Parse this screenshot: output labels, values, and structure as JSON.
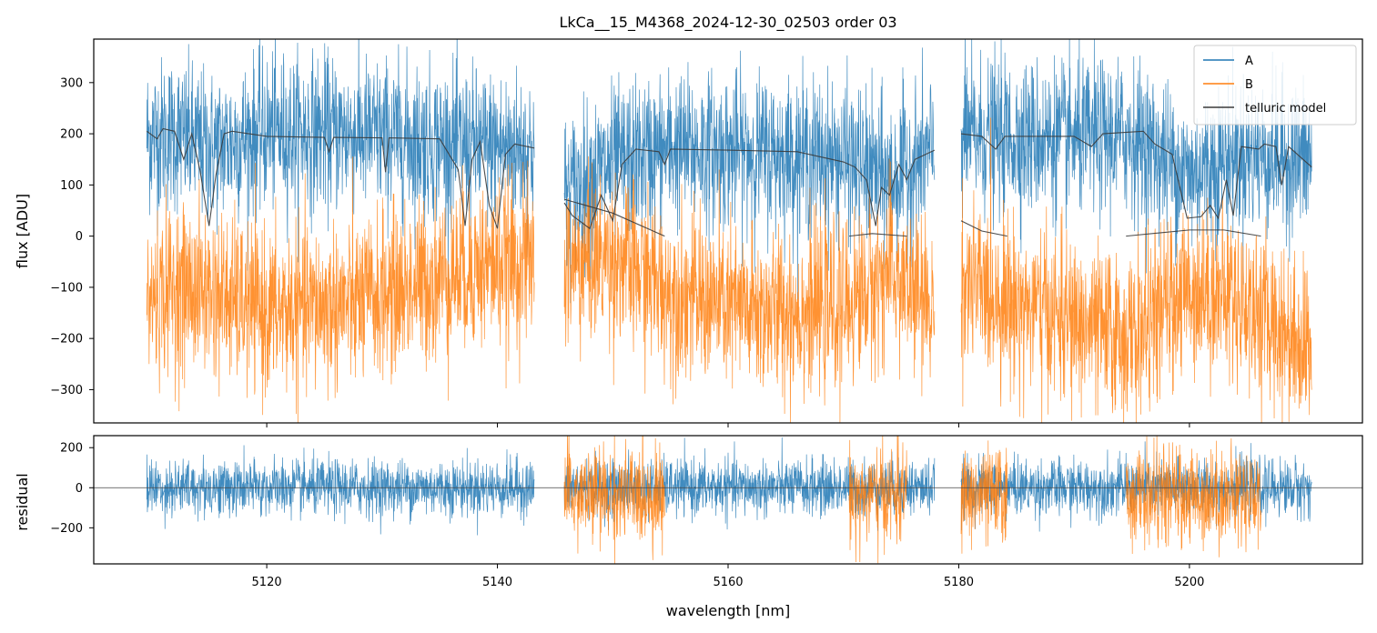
{
  "chart_data": [
    {
      "type": "line",
      "panel": "main",
      "title": "LkCa__15_M4368_2024-12-30_02503  order 03",
      "xlabel": "",
      "ylabel": "flux [ADU]",
      "xlim": [
        5105,
        5215
      ],
      "ylim": [
        -365,
        385
      ],
      "xticks": [
        5120,
        5140,
        5160,
        5180,
        5200
      ],
      "yticks": [
        -300,
        -200,
        -100,
        0,
        100,
        200,
        300
      ],
      "ytick_labels": [
        "−300",
        "−200",
        "−100",
        "0",
        "100",
        "200",
        "300"
      ],
      "legend": {
        "position": "top-right",
        "entries": [
          {
            "label": "A",
            "color": "#1f77b4"
          },
          {
            "label": "B",
            "color": "#ff7f0e"
          },
          {
            "label": "telluric model",
            "color": "#3a3a3a"
          }
        ]
      },
      "segments": [
        {
          "x_start": 5109.6,
          "x_end": 5143.2
        },
        {
          "x_start": 5145.8,
          "x_end": 5177.9
        },
        {
          "x_start": 5180.2,
          "x_end": 5210.6
        }
      ],
      "series": [
        {
          "name": "A",
          "color": "#1f77b4",
          "level": [
            [
              5109.6,
              195
            ],
            [
              5112,
              200
            ],
            [
              5115,
              170
            ],
            [
              5120,
              205
            ],
            [
              5128,
              200
            ],
            [
              5138,
              175
            ],
            [
              5143.2,
              172
            ],
            [
              5145.8,
              80
            ],
            [
              5150,
              140
            ],
            [
              5155,
              170
            ],
            [
              5162,
              165
            ],
            [
              5170,
              150
            ],
            [
              5174,
              110
            ],
            [
              5177.9,
              165
            ],
            [
              5180.2,
              195
            ],
            [
              5190,
              190
            ],
            [
              5195,
              195
            ],
            [
              5200,
              120
            ],
            [
              5204,
              160
            ],
            [
              5210.6,
              150
            ]
          ],
          "noise": 75
        },
        {
          "name": "B",
          "color": "#ff7f0e",
          "level": [
            [
              5109.6,
              -130
            ],
            [
              5112,
              -100
            ],
            [
              5115,
              -110
            ],
            [
              5120,
              -150
            ],
            [
              5128,
              -130
            ],
            [
              5138,
              -60
            ],
            [
              5143.2,
              -50
            ],
            [
              5145.8,
              -60
            ],
            [
              5150,
              -40
            ],
            [
              5155,
              -110
            ],
            [
              5162,
              -150
            ],
            [
              5170,
              -140
            ],
            [
              5174,
              -70
            ],
            [
              5177.9,
              -150
            ],
            [
              5180.2,
              -90
            ],
            [
              5185,
              -130
            ],
            [
              5190,
              -170
            ],
            [
              5195,
              -200
            ],
            [
              5200,
              -100
            ],
            [
              5204,
              -120
            ],
            [
              5210.6,
              -220
            ]
          ],
          "noise": 80
        },
        {
          "name": "telluric model",
          "color": "#3a3a3a",
          "segments": [
            [
              [
                5109.6,
                205
              ],
              [
                5110.5,
                190
              ],
              [
                5111,
                210
              ],
              [
                5112,
                205
              ],
              [
                5112.8,
                150
              ],
              [
                5113.5,
                200
              ],
              [
                5114.2,
                130
              ],
              [
                5115,
                20
              ],
              [
                5115.6,
                120
              ],
              [
                5116.3,
                200
              ],
              [
                5117,
                205
              ],
              [
                5120,
                195
              ],
              [
                5125,
                193
              ],
              [
                5125.4,
                165
              ],
              [
                5125.8,
                193
              ],
              [
                5130,
                192
              ],
              [
                5130.3,
                125
              ],
              [
                5130.6,
                192
              ],
              [
                5135,
                190
              ],
              [
                5136.6,
                130
              ],
              [
                5137.2,
                20
              ],
              [
                5137.8,
                150
              ],
              [
                5138.5,
                185
              ],
              [
                5139.3,
                60
              ],
              [
                5140,
                15
              ],
              [
                5140.7,
                160
              ],
              [
                5141.5,
                180
              ],
              [
                5143.2,
                172
              ]
            ],
            [
              [
                5145.8,
                65
              ],
              [
                5146.5,
                40
              ],
              [
                5148,
                15
              ],
              [
                5149,
                80
              ],
              [
                5150,
                30
              ],
              [
                5150.8,
                140
              ],
              [
                5152,
                170
              ],
              [
                5154,
                165
              ],
              [
                5154.5,
                140
              ],
              [
                5155,
                170
              ],
              [
                5160,
                168
              ],
              [
                5166,
                165
              ],
              [
                5168,
                155
              ],
              [
                5170,
                145
              ],
              [
                5171,
                135
              ],
              [
                5172,
                110
              ],
              [
                5172.8,
                20
              ],
              [
                5173.3,
                95
              ],
              [
                5174,
                80
              ],
              [
                5174.8,
                140
              ],
              [
                5175.5,
                110
              ],
              [
                5176.2,
                150
              ],
              [
                5177.9,
                168
              ]
            ],
            [
              [
                5145.8,
                72
              ],
              [
                5150,
                45
              ],
              [
                5154.5,
                0
              ]
            ],
            [
              [
                5170.5,
                0
              ],
              [
                5172.5,
                5
              ],
              [
                5175.5,
                0
              ]
            ],
            [
              [
                5180.2,
                200
              ],
              [
                5182,
                195
              ],
              [
                5183.2,
                170
              ],
              [
                5184,
                195
              ],
              [
                5190,
                195
              ],
              [
                5191.5,
                175
              ],
              [
                5192.5,
                200
              ],
              [
                5196,
                205
              ],
              [
                5197,
                180
              ],
              [
                5198.5,
                160
              ],
              [
                5199.8,
                35
              ],
              [
                5201,
                38
              ],
              [
                5201.8,
                60
              ],
              [
                5202.5,
                35
              ],
              [
                5203.2,
                110
              ],
              [
                5203.8,
                40
              ],
              [
                5204.5,
                175
              ],
              [
                5206,
                170
              ],
              [
                5206.5,
                180
              ],
              [
                5207.5,
                175
              ],
              [
                5208,
                100
              ],
              [
                5208.6,
                175
              ],
              [
                5210.6,
                135
              ]
            ],
            [
              [
                5180.2,
                30
              ],
              [
                5182,
                10
              ],
              [
                5184.2,
                0
              ]
            ],
            [
              [
                5194.5,
                0
              ],
              [
                5200,
                12
              ],
              [
                5203,
                12
              ],
              [
                5206.2,
                0
              ]
            ]
          ]
        }
      ]
    },
    {
      "type": "line",
      "panel": "residual",
      "xlabel": "wavelength [nm]",
      "ylabel": "residual",
      "xlim": [
        5105,
        5215
      ],
      "ylim": [
        -380,
        260
      ],
      "xticks": [
        5120,
        5140,
        5160,
        5180,
        5200
      ],
      "xtick_labels": [
        "5120",
        "5140",
        "5160",
        "5180",
        "5200"
      ],
      "yticks": [
        -200,
        0,
        200
      ],
      "ytick_labels": [
        "−200",
        "0",
        "200"
      ],
      "zero_line": 0,
      "series": [
        {
          "name": "A",
          "color": "#1f77b4",
          "ranges": [
            [
              5109.6,
              5143.2
            ],
            [
              5145.8,
              5177.9
            ],
            [
              5180.2,
              5210.6
            ]
          ],
          "noise": 70
        },
        {
          "name": "B",
          "color": "#ff7f0e",
          "ranges": [
            [
              5145.8,
              5154.5
            ],
            [
              5170.5,
              5175.5
            ],
            [
              5180.2,
              5184.2
            ],
            [
              5194.5,
              5206.2
            ]
          ],
          "noise": 120
        }
      ]
    }
  ]
}
